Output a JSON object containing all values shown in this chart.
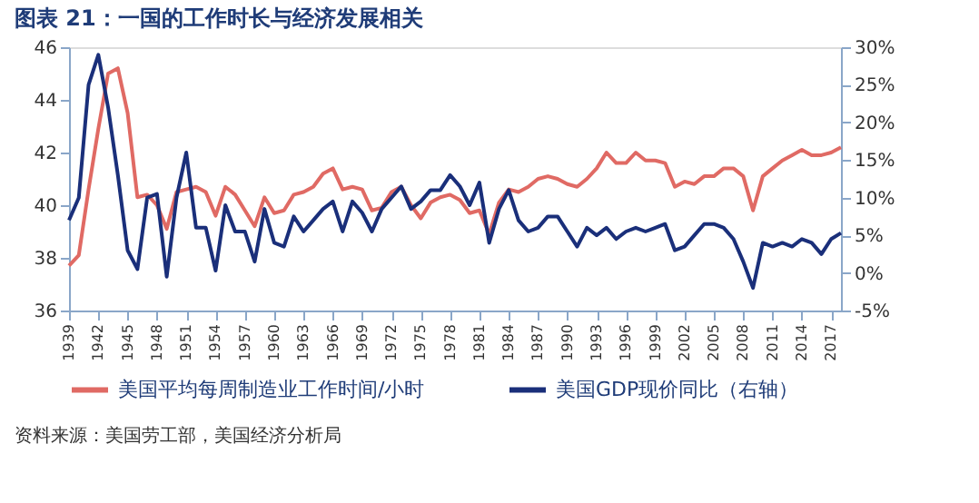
{
  "chart_data": {
    "type": "line",
    "title": "图表 21：一国的工作时长与经济发展相关",
    "x": [
      1939,
      1940,
      1941,
      1942,
      1943,
      1944,
      1945,
      1946,
      1947,
      1948,
      1949,
      1950,
      1951,
      1952,
      1953,
      1954,
      1955,
      1956,
      1957,
      1958,
      1959,
      1960,
      1961,
      1962,
      1963,
      1964,
      1965,
      1966,
      1967,
      1968,
      1969,
      1970,
      1971,
      1972,
      1973,
      1974,
      1975,
      1976,
      1977,
      1978,
      1979,
      1980,
      1981,
      1982,
      1983,
      1984,
      1985,
      1986,
      1987,
      1988,
      1989,
      1990,
      1991,
      1992,
      1993,
      1994,
      1995,
      1996,
      1997,
      1998,
      1999,
      2000,
      2001,
      2002,
      2003,
      2004,
      2005,
      2006,
      2007,
      2008,
      2009,
      2010,
      2011,
      2012,
      2013,
      2014,
      2015,
      2016,
      2017,
      2018
    ],
    "series": [
      {
        "name": "美国平均每周制造业工作时间/小时",
        "color": "#e06a64",
        "values": [
          37.7,
          38.1,
          40.6,
          42.9,
          45.0,
          45.2,
          43.5,
          40.3,
          40.4,
          40.0,
          39.1,
          40.5,
          40.6,
          40.7,
          40.5,
          39.6,
          40.7,
          40.4,
          39.8,
          39.2,
          40.3,
          39.7,
          39.8,
          40.4,
          40.5,
          40.7,
          41.2,
          41.4,
          40.6,
          40.7,
          40.6,
          39.8,
          39.9,
          40.5,
          40.7,
          40.0,
          39.5,
          40.1,
          40.3,
          40.4,
          40.2,
          39.7,
          39.8,
          38.9,
          40.1,
          40.6,
          40.5,
          40.7,
          41.0,
          41.1,
          41.0,
          40.8,
          40.7,
          41.0,
          41.4,
          42.0,
          41.6,
          41.6,
          42.0,
          41.7,
          41.7,
          41.6,
          40.7,
          40.9,
          40.8,
          41.1,
          41.1,
          41.4,
          41.4,
          41.1,
          39.8,
          41.1,
          41.4,
          41.7,
          41.9,
          42.1,
          41.9,
          41.9,
          42.0,
          42.2
        ]
      },
      {
        "name": "美国GDP现价同比（右轴）",
        "color": "#1a2f7a",
        "axis": "y2",
        "values": [
          7.0,
          10,
          25,
          29,
          22,
          13,
          3,
          0.5,
          10,
          10.5,
          -0.5,
          10,
          16,
          6,
          6,
          0.3,
          9,
          5.5,
          5.5,
          1.5,
          8.5,
          4,
          3.5,
          7.5,
          5.5,
          7,
          8.5,
          9.5,
          5.5,
          9.5,
          8,
          5.5,
          8.5,
          10,
          11.5,
          8.5,
          9.5,
          11,
          11,
          13,
          11.5,
          9,
          12,
          4,
          8.5,
          11,
          7,
          5.5,
          6,
          7.5,
          7.5,
          5.5,
          3.5,
          6,
          5,
          6,
          4.5,
          5.5,
          6,
          5.5,
          6,
          6.5,
          3,
          3.5,
          5,
          6.5,
          6.5,
          6,
          4.5,
          1.5,
          -2,
          4,
          3.5,
          4,
          3.5,
          4.5,
          4,
          2.5,
          4.5,
          5.3
        ]
      }
    ],
    "xlim": [
      1939,
      2018
    ],
    "xticks": [
      1939,
      1942,
      1945,
      1948,
      1951,
      1954,
      1957,
      1960,
      1963,
      1966,
      1969,
      1972,
      1975,
      1978,
      1981,
      1984,
      1987,
      1990,
      1993,
      1996,
      1999,
      2002,
      2005,
      2008,
      2011,
      2014,
      2017
    ],
    "ylim": [
      36,
      46
    ],
    "yticks": [
      36,
      38,
      40,
      42,
      44,
      46
    ],
    "y2lim": [
      -5,
      30
    ],
    "y2ticks": [
      {
        "value": -5,
        "label": "-5%"
      },
      {
        "value": 0,
        "label": "0%"
      },
      {
        "value": 5,
        "label": "5%"
      },
      {
        "value": 10,
        "label": "10%"
      },
      {
        "value": 15,
        "label": "15%"
      },
      {
        "value": 20,
        "label": "20%"
      },
      {
        "value": 25,
        "label": "25%"
      },
      {
        "value": 30,
        "label": "30%"
      }
    ],
    "grid": false,
    "legend": "bottom",
    "annotations": [
      "资料来源：美国劳工部，美国经济分析局"
    ]
  }
}
